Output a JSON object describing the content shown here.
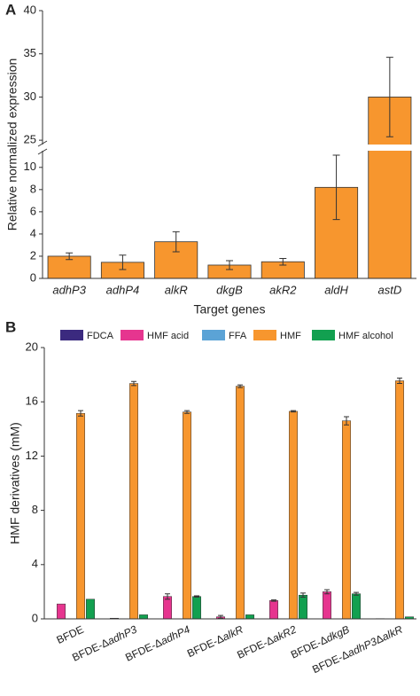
{
  "chart_data": [
    {
      "type": "bar",
      "panel_label": "A",
      "x_label": "Target genes",
      "y_label": "Relative normalized expression",
      "categories": [
        "adhP3",
        "adhP4",
        "alkR",
        "dkgB",
        "akR2",
        "aldH",
        "astD"
      ],
      "values": [
        2.0,
        1.45,
        3.3,
        1.2,
        1.5,
        8.2,
        30.0
      ],
      "errors": [
        0.3,
        0.65,
        0.9,
        0.4,
        0.3,
        2.9,
        4.6
      ],
      "color": "#f7962e",
      "ylim": [
        0,
        40
      ],
      "yticks": [
        0,
        2,
        4,
        6,
        8,
        10,
        25,
        30,
        35,
        40
      ],
      "axis_break": [
        11.5,
        24.5
      ]
    },
    {
      "type": "grouped_bar",
      "panel_label": "B",
      "y_label": "HMF derivatives (mM)",
      "categories": [
        "BFDE",
        "BFDE-ΔadhP3",
        "BFDE-ΔadhP4",
        "BFDE-ΔalkR",
        "BFDE-ΔakR2",
        "BFDE-ΔdkgB",
        "BFDE-ΔadhP3ΔalkR"
      ],
      "series": [
        {
          "name": "FDCA",
          "color": "#3b2a7f",
          "values": [
            0,
            0,
            0,
            0,
            0,
            0,
            0
          ],
          "errors": [
            0,
            0,
            0,
            0,
            0,
            0,
            0
          ]
        },
        {
          "name": "HMF acid",
          "color": "#e6358f",
          "values": [
            1.1,
            0.05,
            1.65,
            0.15,
            1.35,
            2.0,
            0.02
          ],
          "errors": [
            0,
            0,
            0.2,
            0.1,
            0.05,
            0.15,
            0
          ]
        },
        {
          "name": "FFA",
          "color": "#5ba3d6",
          "values": [
            0,
            0,
            0,
            0,
            0,
            0,
            0
          ],
          "errors": [
            0,
            0,
            0,
            0,
            0,
            0,
            0
          ]
        },
        {
          "name": "HMF",
          "color": "#f7962e",
          "values": [
            15.15,
            17.35,
            15.25,
            17.15,
            15.3,
            14.6,
            17.55
          ],
          "errors": [
            0.2,
            0.15,
            0.1,
            0.1,
            0.05,
            0.3,
            0.2
          ]
        },
        {
          "name": "HMF alcohol",
          "color": "#12a050",
          "values": [
            1.45,
            0.3,
            1.65,
            0.3,
            1.75,
            1.85,
            0.15
          ],
          "errors": [
            0,
            0,
            0.05,
            0,
            0.15,
            0.1,
            0
          ]
        }
      ],
      "ylim": [
        0,
        20
      ],
      "yticks": [
        0,
        4,
        8,
        12,
        16,
        20
      ]
    }
  ]
}
